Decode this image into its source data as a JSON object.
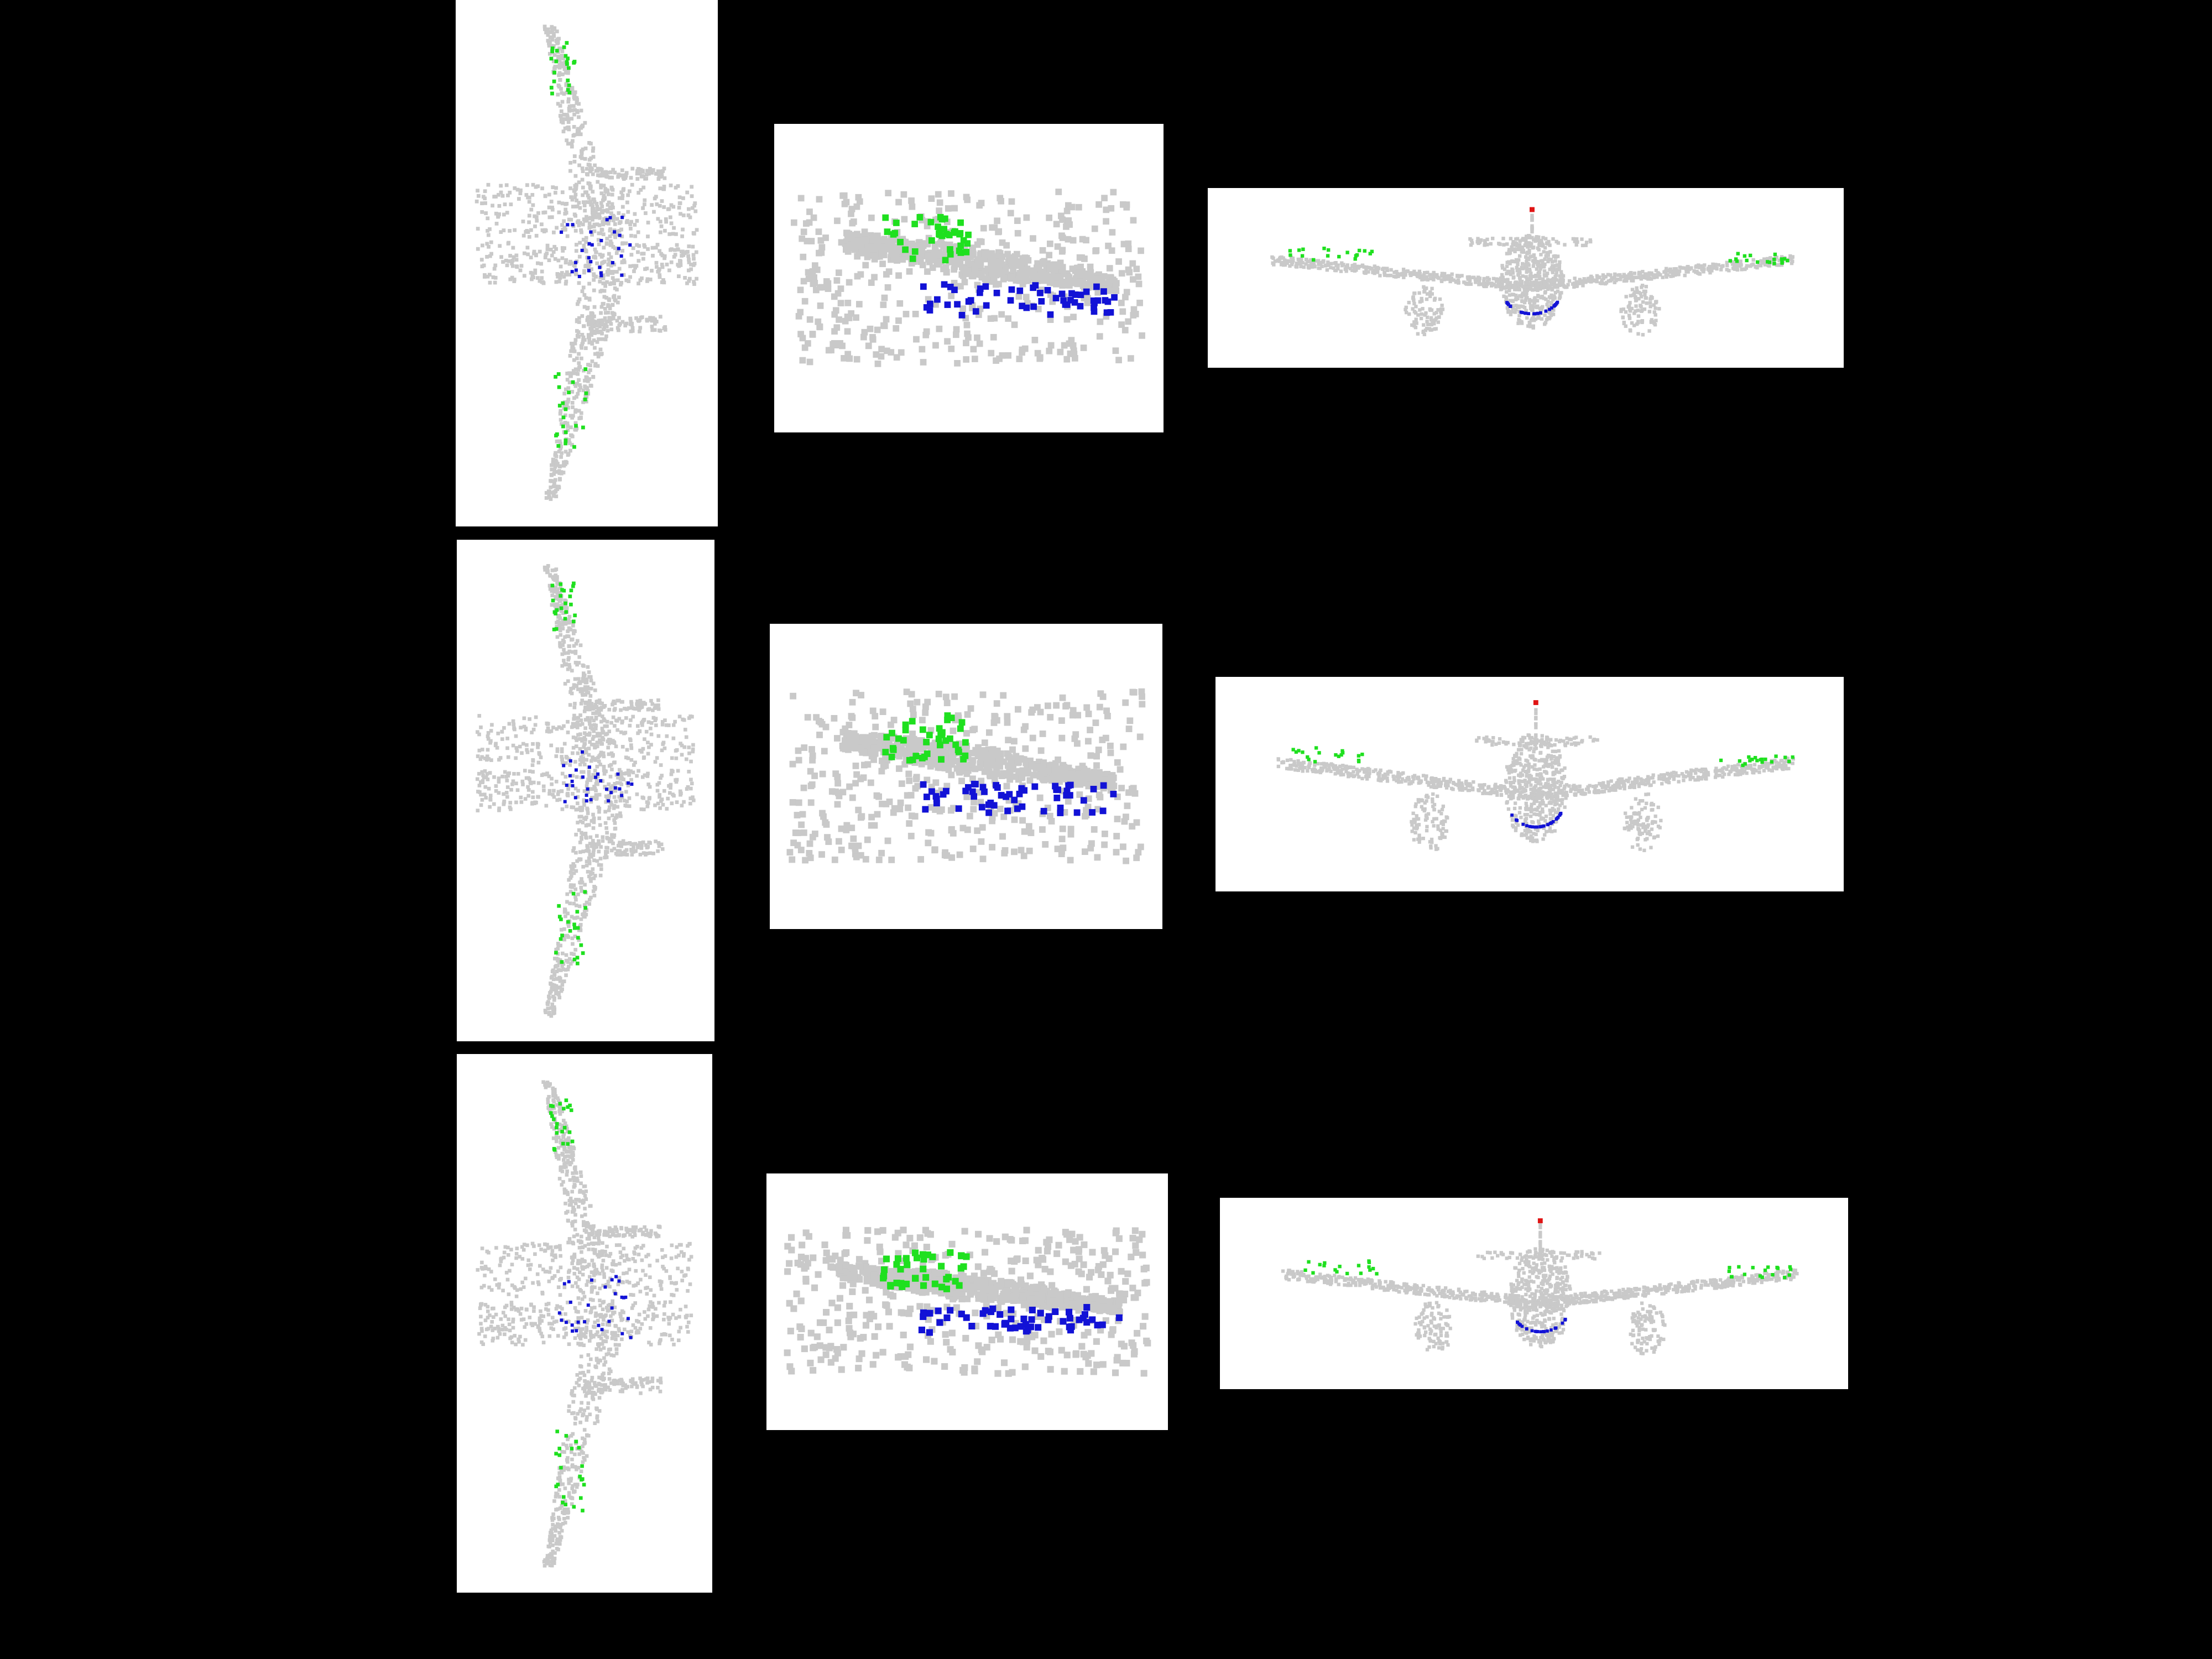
{
  "figure": {
    "background": "#000000",
    "rows": 3,
    "views_per_row": [
      "top",
      "side",
      "front"
    ]
  },
  "segmentation_colors": {
    "body": "#c9c9c9",
    "wing_highlight": "#1fe01f",
    "engine_highlight": "#1212d6",
    "tail_tip": "#e01414"
  },
  "panel_background": "#ffffff"
}
